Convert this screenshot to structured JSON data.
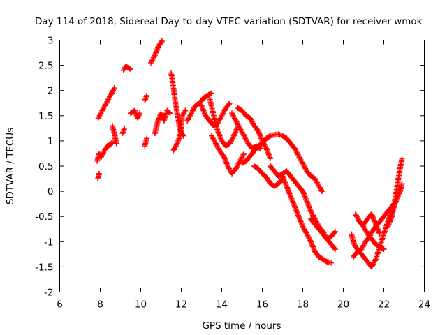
{
  "chart_data": {
    "type": "scatter",
    "title": "Day 114 of 2018, Sidereal Day-to-day VTEC variation (SDTVAR) for receiver wmok",
    "xlabel": "GPS time / hours",
    "ylabel": "SDTVAR / TECUs",
    "xlim": [
      6,
      24
    ],
    "ylim": [
      -2,
      3
    ],
    "xticks": [
      "6",
      "8",
      "10",
      "12",
      "14",
      "16",
      "18",
      "20",
      "22",
      "24"
    ],
    "yticks": [
      "-2",
      "-1.5",
      "-1",
      "-0.5",
      "0",
      "0.5",
      "1",
      "1.5",
      "2",
      "2.5",
      "3"
    ],
    "marker": "+",
    "series_color": "#ff0000",
    "grid": false,
    "segments": [
      [
        [
          7.9,
          1.45
        ],
        [
          8.1,
          1.6
        ],
        [
          8.3,
          1.75
        ],
        [
          8.5,
          1.9
        ],
        [
          8.7,
          2.05
        ]
      ],
      [
        [
          7.85,
          0.6
        ],
        [
          7.95,
          0.75
        ],
        [
          8.05,
          0.68
        ],
        [
          8.2,
          0.8
        ],
        [
          8.35,
          0.9
        ],
        [
          8.5,
          0.92
        ],
        [
          8.6,
          0.98
        ]
      ],
      [
        [
          7.88,
          0.25
        ],
        [
          7.95,
          0.35
        ]
      ],
      [
        [
          8.6,
          1.3
        ],
        [
          8.7,
          1.15
        ],
        [
          8.75,
          1.05
        ],
        [
          8.8,
          0.95
        ]
      ],
      [
        [
          9.1,
          1.15
        ],
        [
          9.2,
          1.25
        ]
      ],
      [
        [
          9.15,
          2.4
        ],
        [
          9.25,
          2.48
        ],
        [
          9.4,
          2.45
        ],
        [
          9.5,
          2.42
        ]
      ],
      [
        [
          9.5,
          1.55
        ],
        [
          9.7,
          1.6
        ],
        [
          9.85,
          1.45
        ],
        [
          9.95,
          1.55
        ]
      ],
      [
        [
          10.2,
          0.9
        ],
        [
          10.3,
          1.05
        ]
      ],
      [
        [
          10.2,
          1.8
        ],
        [
          10.3,
          1.9
        ]
      ],
      [
        [
          10.5,
          2.55
        ],
        [
          10.7,
          2.7
        ],
        [
          10.9,
          2.9
        ],
        [
          11.05,
          2.98
        ]
      ],
      [
        [
          10.7,
          1.15
        ],
        [
          10.85,
          1.4
        ],
        [
          11.0,
          1.55
        ],
        [
          11.15,
          1.4
        ],
        [
          11.3,
          1.6
        ],
        [
          11.45,
          1.55
        ]
      ],
      [
        [
          11.5,
          2.35
        ],
        [
          11.6,
          2.1
        ],
        [
          11.7,
          1.8
        ],
        [
          11.8,
          1.55
        ],
        [
          11.95,
          1.2
        ],
        [
          12.1,
          1.1
        ]
      ],
      [
        [
          11.6,
          0.8
        ],
        [
          11.8,
          0.95
        ],
        [
          11.95,
          1.1
        ],
        [
          12.05,
          1.5
        ],
        [
          12.2,
          1.6
        ]
      ],
      [
        [
          12.3,
          1.4
        ],
        [
          12.5,
          1.55
        ],
        [
          12.7,
          1.7
        ],
        [
          12.9,
          1.75
        ],
        [
          13.1,
          1.85
        ],
        [
          13.3,
          1.9
        ],
        [
          13.5,
          1.95
        ]
      ],
      [
        [
          13.0,
          1.7
        ],
        [
          13.2,
          1.5
        ],
        [
          13.4,
          1.4
        ],
        [
          13.6,
          1.3
        ],
        [
          13.8,
          1.35
        ],
        [
          14.0,
          1.5
        ],
        [
          14.2,
          1.65
        ],
        [
          14.4,
          1.75
        ]
      ],
      [
        [
          13.4,
          1.85
        ],
        [
          13.6,
          1.5
        ],
        [
          13.8,
          1.2
        ],
        [
          14.0,
          1.0
        ],
        [
          14.2,
          0.9
        ],
        [
          14.4,
          0.95
        ],
        [
          14.6,
          1.1
        ],
        [
          14.8,
          1.3
        ]
      ],
      [
        [
          13.5,
          1.1
        ],
        [
          13.7,
          0.95
        ],
        [
          13.9,
          0.8
        ],
        [
          14.1,
          0.7
        ],
        [
          14.3,
          0.5
        ],
        [
          14.5,
          0.35
        ],
        [
          14.7,
          0.45
        ],
        [
          14.9,
          0.6
        ],
        [
          15.1,
          0.75
        ]
      ],
      [
        [
          14.5,
          1.55
        ],
        [
          14.7,
          1.4
        ],
        [
          14.9,
          1.25
        ],
        [
          15.1,
          1.1
        ],
        [
          15.3,
          0.95
        ],
        [
          15.5,
          0.85
        ],
        [
          15.7,
          0.9
        ],
        [
          15.9,
          0.85
        ]
      ],
      [
        [
          14.8,
          1.65
        ],
        [
          15.0,
          1.6
        ],
        [
          15.2,
          1.5
        ],
        [
          15.4,
          1.45
        ],
        [
          15.6,
          1.3
        ],
        [
          15.8,
          1.2
        ],
        [
          16.0,
          1.0
        ],
        [
          16.2,
          0.85
        ],
        [
          16.4,
          0.65
        ]
      ],
      [
        [
          15.0,
          0.55
        ],
        [
          15.2,
          0.6
        ],
        [
          15.4,
          0.7
        ],
        [
          15.6,
          0.8
        ],
        [
          15.8,
          0.9
        ],
        [
          16.0,
          0.95
        ],
        [
          16.2,
          1.05
        ],
        [
          16.4,
          1.1
        ],
        [
          16.6,
          1.12
        ],
        [
          16.8,
          1.13
        ],
        [
          17.0,
          1.1
        ],
        [
          17.2,
          1.05
        ],
        [
          17.4,
          0.95
        ],
        [
          17.6,
          0.85
        ],
        [
          17.8,
          0.7
        ],
        [
          18.0,
          0.55
        ],
        [
          18.2,
          0.4
        ],
        [
          18.4,
          0.3
        ],
        [
          18.6,
          0.25
        ],
        [
          18.8,
          0.1
        ],
        [
          18.95,
          0.0
        ]
      ],
      [
        [
          15.6,
          0.5
        ],
        [
          15.8,
          0.45
        ],
        [
          16.0,
          0.35
        ],
        [
          16.2,
          0.28
        ],
        [
          16.4,
          0.15
        ],
        [
          16.6,
          0.1
        ],
        [
          16.8,
          0.15
        ],
        [
          17.0,
          0.25
        ]
      ],
      [
        [
          16.4,
          0.5
        ],
        [
          16.6,
          0.4
        ],
        [
          16.8,
          0.3
        ],
        [
          17.0,
          0.35
        ],
        [
          17.2,
          0.4
        ],
        [
          17.4,
          0.3
        ],
        [
          17.6,
          0.2
        ],
        [
          17.8,
          0.1
        ],
        [
          18.0,
          0.0
        ],
        [
          18.2,
          -0.2
        ],
        [
          18.4,
          -0.4
        ],
        [
          18.6,
          -0.55
        ],
        [
          18.8,
          -0.7
        ],
        [
          19.0,
          -0.8
        ],
        [
          19.2,
          -0.95
        ],
        [
          19.4,
          -1.05
        ],
        [
          19.6,
          -1.15
        ]
      ],
      [
        [
          17.0,
          0.3
        ],
        [
          17.2,
          0.1
        ],
        [
          17.4,
          -0.1
        ],
        [
          17.6,
          -0.3
        ],
        [
          17.8,
          -0.5
        ],
        [
          18.0,
          -0.7
        ],
        [
          18.2,
          -0.85
        ],
        [
          18.4,
          -1.0
        ],
        [
          18.6,
          -1.2
        ],
        [
          18.8,
          -1.3
        ],
        [
          19.0,
          -1.35
        ],
        [
          19.2,
          -1.4
        ],
        [
          19.4,
          -1.42
        ]
      ],
      [
        [
          18.4,
          -0.55
        ],
        [
          18.6,
          -0.65
        ],
        [
          18.8,
          -0.75
        ],
        [
          19.0,
          -0.85
        ],
        [
          19.2,
          -0.95
        ],
        [
          19.4,
          -0.9
        ],
        [
          19.6,
          -0.8
        ]
      ],
      [
        [
          20.4,
          -0.85
        ],
        [
          20.5,
          -1.0
        ],
        [
          20.6,
          -1.1
        ],
        [
          20.8,
          -1.2
        ],
        [
          21.0,
          -1.3
        ],
        [
          21.2,
          -1.4
        ],
        [
          21.4,
          -1.5
        ],
        [
          21.6,
          -1.35
        ],
        [
          21.8,
          -1.1
        ],
        [
          22.0,
          -0.85
        ],
        [
          22.2,
          -0.6
        ],
        [
          22.4,
          -0.4
        ],
        [
          22.6,
          -0.2
        ],
        [
          22.8,
          0.0
        ],
        [
          22.9,
          0.15
        ]
      ],
      [
        [
          20.5,
          -1.3
        ],
        [
          20.7,
          -1.2
        ],
        [
          20.9,
          -1.15
        ],
        [
          21.1,
          -1.0
        ],
        [
          21.3,
          -0.9
        ],
        [
          21.5,
          -0.75
        ],
        [
          21.7,
          -0.65
        ],
        [
          21.9,
          -0.55
        ],
        [
          22.1,
          -0.45
        ],
        [
          22.3,
          -0.35
        ],
        [
          22.5,
          -0.25
        ]
      ],
      [
        [
          20.6,
          -0.45
        ],
        [
          20.8,
          -0.6
        ],
        [
          21.0,
          -0.7
        ],
        [
          21.2,
          -0.85
        ],
        [
          21.4,
          -0.95
        ],
        [
          21.6,
          -1.05
        ],
        [
          21.8,
          -1.1
        ],
        [
          22.0,
          -1.15
        ]
      ],
      [
        [
          21.0,
          -0.65
        ],
        [
          21.2,
          -0.55
        ],
        [
          21.4,
          -0.45
        ],
        [
          21.6,
          -0.65
        ],
        [
          21.8,
          -0.85
        ]
      ],
      [
        [
          22.2,
          -0.7
        ],
        [
          22.4,
          -0.5
        ],
        [
          22.5,
          -0.3
        ],
        [
          22.6,
          -0.05
        ],
        [
          22.7,
          0.2
        ],
        [
          22.8,
          0.45
        ],
        [
          22.9,
          0.65
        ]
      ]
    ]
  }
}
